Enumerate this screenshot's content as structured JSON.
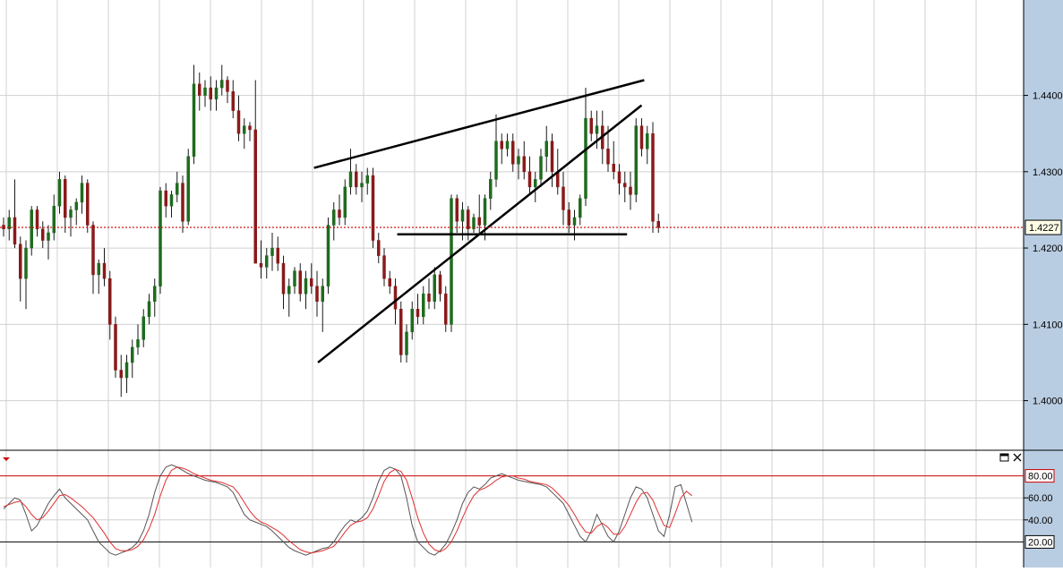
{
  "colors": {
    "background": "#ffffff",
    "grid": "#d0d0d0",
    "axis_panel": "#b9cde2",
    "bull_candle": "#1f6b1f",
    "bear_candle": "#8a1a1a",
    "wick": "#1a1a1a",
    "price_line": "#cc0000",
    "trendline": "#000000",
    "osc_k": "#555555",
    "osc_d": "#e03030",
    "osc_level_upper": "#cc0000",
    "osc_level_lower": "#000000"
  },
  "chart_data": [
    {
      "type": "candlestick",
      "title": "",
      "ylim": [
        1.3935,
        1.4525
      ],
      "y_ticks": [
        "1.4000",
        "1.4100",
        "1.4200",
        "1.4300",
        "1.4400"
      ],
      "current_price_label": "1.4227",
      "current_price": 1.4227,
      "grid": true,
      "bars": [
        [
          1.423,
          1.424,
          1.4215,
          1.4225
        ],
        [
          1.4225,
          1.425,
          1.421,
          1.424
        ],
        [
          1.424,
          1.429,
          1.42,
          1.4205
        ],
        [
          1.4205,
          1.4215,
          1.413,
          1.416
        ],
        [
          1.416,
          1.421,
          1.412,
          1.42
        ],
        [
          1.42,
          1.4255,
          1.419,
          1.425
        ],
        [
          1.425,
          1.4255,
          1.4215,
          1.4225
        ],
        [
          1.4225,
          1.4235,
          1.42,
          1.421
        ],
        [
          1.421,
          1.423,
          1.4185,
          1.422
        ],
        [
          1.422,
          1.427,
          1.421,
          1.4255
        ],
        [
          1.4255,
          1.43,
          1.4245,
          1.429
        ],
        [
          1.429,
          1.4295,
          1.422,
          1.424
        ],
        [
          1.424,
          1.4255,
          1.4215,
          1.425
        ],
        [
          1.425,
          1.4265,
          1.423,
          1.426
        ],
        [
          1.426,
          1.4295,
          1.4245,
          1.4285
        ],
        [
          1.4285,
          1.429,
          1.422,
          1.423
        ],
        [
          1.423,
          1.4235,
          1.414,
          1.4165
        ],
        [
          1.4165,
          1.4185,
          1.414,
          1.418
        ],
        [
          1.418,
          1.42,
          1.415,
          1.416
        ],
        [
          1.416,
          1.417,
          1.408,
          1.41
        ],
        [
          1.41,
          1.411,
          1.403,
          1.404
        ],
        [
          1.404,
          1.406,
          1.4005,
          1.403
        ],
        [
          1.403,
          1.406,
          1.401,
          1.405
        ],
        [
          1.405,
          1.408,
          1.403,
          1.407
        ],
        [
          1.407,
          1.41,
          1.406,
          1.408
        ],
        [
          1.408,
          1.412,
          1.407,
          1.411
        ],
        [
          1.411,
          1.414,
          1.41,
          1.413
        ],
        [
          1.413,
          1.416,
          1.411,
          1.415
        ],
        [
          1.415,
          1.428,
          1.414,
          1.4275
        ],
        [
          1.4275,
          1.4285,
          1.424,
          1.4255
        ],
        [
          1.4255,
          1.4275,
          1.424,
          1.427
        ],
        [
          1.427,
          1.43,
          1.426,
          1.4285
        ],
        [
          1.4285,
          1.4295,
          1.422,
          1.4235
        ],
        [
          1.4235,
          1.433,
          1.423,
          1.432
        ],
        [
          1.432,
          1.444,
          1.431,
          1.4415
        ],
        [
          1.4415,
          1.443,
          1.438,
          1.44
        ],
        [
          1.44,
          1.442,
          1.4385,
          1.441
        ],
        [
          1.441,
          1.4425,
          1.438,
          1.4395
        ],
        [
          1.4395,
          1.442,
          1.438,
          1.441
        ],
        [
          1.441,
          1.444,
          1.44,
          1.442
        ],
        [
          1.442,
          1.4425,
          1.439,
          1.4405
        ],
        [
          1.4405,
          1.442,
          1.437,
          1.438
        ],
        [
          1.438,
          1.44,
          1.434,
          1.435
        ],
        [
          1.435,
          1.437,
          1.433,
          1.436
        ],
        [
          1.436,
          1.4365,
          1.434,
          1.4355
        ],
        [
          1.4355,
          1.442,
          1.418,
          1.418
        ],
        [
          1.418,
          1.421,
          1.416,
          1.4175
        ],
        [
          1.4175,
          1.42,
          1.416,
          1.419
        ],
        [
          1.419,
          1.422,
          1.417,
          1.42
        ],
        [
          1.42,
          1.4215,
          1.417,
          1.418
        ],
        [
          1.418,
          1.419,
          1.412,
          1.414
        ],
        [
          1.414,
          1.416,
          1.411,
          1.415
        ],
        [
          1.415,
          1.4175,
          1.414,
          1.417
        ],
        [
          1.417,
          1.418,
          1.413,
          1.414
        ],
        [
          1.414,
          1.417,
          1.412,
          1.416
        ],
        [
          1.416,
          1.418,
          1.414,
          1.415
        ],
        [
          1.415,
          1.417,
          1.411,
          1.413
        ],
        [
          1.413,
          1.416,
          1.409,
          1.415
        ],
        [
          1.415,
          1.424,
          1.414,
          1.423
        ],
        [
          1.423,
          1.426,
          1.421,
          1.425
        ],
        [
          1.425,
          1.427,
          1.423,
          1.424
        ],
        [
          1.424,
          1.429,
          1.423,
          1.428
        ],
        [
          1.428,
          1.433,
          1.427,
          1.43
        ],
        [
          1.43,
          1.431,
          1.427,
          1.428
        ],
        [
          1.428,
          1.43,
          1.426,
          1.4285
        ],
        [
          1.4285,
          1.4305,
          1.427,
          1.4295
        ],
        [
          1.4295,
          1.4305,
          1.42,
          1.421
        ],
        [
          1.421,
          1.422,
          1.418,
          1.419
        ],
        [
          1.419,
          1.42,
          1.415,
          1.416
        ],
        [
          1.416,
          1.417,
          1.414,
          1.415
        ],
        [
          1.415,
          1.416,
          1.41,
          1.412
        ],
        [
          1.412,
          1.413,
          1.405,
          1.406
        ],
        [
          1.406,
          1.41,
          1.405,
          1.409
        ],
        [
          1.409,
          1.413,
          1.408,
          1.412
        ],
        [
          1.412,
          1.414,
          1.41,
          1.411
        ],
        [
          1.411,
          1.415,
          1.41,
          1.414
        ],
        [
          1.414,
          1.416,
          1.412,
          1.413
        ],
        [
          1.413,
          1.4175,
          1.412,
          1.4165
        ],
        [
          1.4165,
          1.417,
          1.413,
          1.414
        ],
        [
          1.414,
          1.415,
          1.409,
          1.41
        ],
        [
          1.41,
          1.427,
          1.409,
          1.4265
        ],
        [
          1.4265,
          1.427,
          1.422,
          1.4235
        ],
        [
          1.4235,
          1.426,
          1.421,
          1.425
        ],
        [
          1.425,
          1.4255,
          1.421,
          1.4225
        ],
        [
          1.4225,
          1.4245,
          1.422,
          1.424
        ],
        [
          1.424,
          1.427,
          1.422,
          1.423
        ],
        [
          1.423,
          1.427,
          1.421,
          1.4265
        ],
        [
          1.4265,
          1.43,
          1.425,
          1.429
        ],
        [
          1.429,
          1.4375,
          1.428,
          1.434
        ],
        [
          1.434,
          1.435,
          1.431,
          1.433
        ],
        [
          1.433,
          1.435,
          1.432,
          1.434
        ],
        [
          1.434,
          1.435,
          1.43,
          1.431
        ],
        [
          1.431,
          1.433,
          1.429,
          1.432
        ],
        [
          1.432,
          1.434,
          1.429,
          1.43
        ],
        [
          1.43,
          1.432,
          1.427,
          1.428
        ],
        [
          1.428,
          1.43,
          1.426,
          1.429
        ],
        [
          1.429,
          1.433,
          1.428,
          1.432
        ],
        [
          1.432,
          1.436,
          1.43,
          1.434
        ],
        [
          1.434,
          1.435,
          1.428,
          1.43
        ],
        [
          1.43,
          1.433,
          1.427,
          1.428
        ],
        [
          1.428,
          1.43,
          1.423,
          1.425
        ],
        [
          1.425,
          1.426,
          1.422,
          1.423
        ],
        [
          1.423,
          1.425,
          1.421,
          1.424
        ],
        [
          1.424,
          1.427,
          1.423,
          1.4265
        ],
        [
          1.4265,
          1.441,
          1.4255,
          1.437
        ],
        [
          1.437,
          1.438,
          1.434,
          1.435
        ],
        [
          1.435,
          1.438,
          1.433,
          1.436
        ],
        [
          1.436,
          1.438,
          1.431,
          1.433
        ],
        [
          1.433,
          1.436,
          1.43,
          1.431
        ],
        [
          1.431,
          1.434,
          1.429,
          1.43
        ],
        [
          1.43,
          1.431,
          1.427,
          1.4285
        ],
        [
          1.4285,
          1.43,
          1.426,
          1.428
        ],
        [
          1.428,
          1.43,
          1.425,
          1.427
        ],
        [
          1.427,
          1.437,
          1.426,
          1.436
        ],
        [
          1.436,
          1.437,
          1.432,
          1.433
        ],
        [
          1.433,
          1.436,
          1.431,
          1.435
        ],
        [
          1.435,
          1.4365,
          1.422,
          1.4235
        ],
        [
          1.4235,
          1.4245,
          1.422,
          1.4227
        ]
      ],
      "trendlines": [
        {
          "name": "upper-resistance",
          "from": [
            23.5,
            1.4305
          ],
          "to": [
            48.5,
            1.442
          ]
        },
        {
          "name": "rising-support",
          "from": [
            23.8,
            1.405
          ],
          "to": [
            48.3,
            1.4387
          ]
        },
        {
          "name": "horizontal-support",
          "from": [
            29.8,
            1.4218
          ],
          "to": [
            47.2,
            1.4218
          ]
        }
      ]
    },
    {
      "type": "line",
      "title": "",
      "ylim": [
        0,
        100
      ],
      "y_ticks": [
        "80.00",
        "60.00",
        "40.00",
        "20.00"
      ],
      "levels": [
        80,
        20
      ],
      "series": [
        {
          "values": [
            50,
            55,
            60,
            58,
            45,
            30,
            35,
            45,
            55,
            62,
            68,
            60,
            55,
            50,
            45,
            40,
            30,
            20,
            15,
            10,
            8,
            10,
            12,
            15,
            20,
            30,
            45,
            65,
            80,
            88,
            90,
            88,
            85,
            82,
            80,
            78,
            76,
            75,
            74,
            72,
            70,
            65,
            55,
            45,
            40,
            38,
            36,
            34,
            30,
            25,
            20,
            15,
            12,
            10,
            8,
            10,
            12,
            14,
            15,
            20,
            28,
            35,
            40,
            38,
            42,
            48,
            60,
            75,
            85,
            88,
            86,
            80,
            60,
            35,
            20,
            15,
            10,
            8,
            12,
            18,
            28,
            40,
            55,
            65,
            70,
            68,
            72,
            78,
            80,
            82,
            80,
            78,
            76,
            75,
            74,
            73,
            72,
            70,
            65,
            60,
            55,
            45,
            35,
            25,
            20,
            30,
            45,
            35,
            25,
            20,
            30,
            45,
            60,
            70,
            68,
            60,
            45,
            30,
            25,
            45,
            70,
            72,
            55,
            38
          ]
        },
        {
          "values": [
            52,
            54,
            56,
            57,
            52,
            45,
            40,
            42,
            48,
            55,
            62,
            63,
            60,
            56,
            52,
            47,
            42,
            35,
            28,
            20,
            14,
            12,
            12,
            13,
            16,
            22,
            32,
            45,
            62,
            76,
            85,
            88,
            87,
            85,
            82,
            80,
            78,
            76,
            75,
            74,
            72,
            70,
            64,
            56,
            48,
            42,
            38,
            36,
            33,
            30,
            26,
            21,
            17,
            13,
            11,
            10,
            11,
            12,
            14,
            16,
            22,
            29,
            35,
            38,
            39,
            42,
            50,
            62,
            75,
            83,
            86,
            84,
            76,
            60,
            42,
            28,
            18,
            13,
            11,
            14,
            20,
            30,
            42,
            53,
            62,
            67,
            69,
            72,
            76,
            79,
            80,
            80,
            78,
            77,
            75,
            74,
            73,
            72,
            69,
            64,
            59,
            53,
            45,
            36,
            29,
            28,
            34,
            37,
            33,
            27,
            27,
            34,
            45,
            56,
            64,
            65,
            58,
            46,
            35,
            33,
            46,
            60,
            66,
            62
          ]
        }
      ]
    }
  ],
  "toolbar": {
    "indicator_menu_icon": "triangle-down-icon",
    "maximize_icon": "maximize-icon",
    "close_icon": "close-icon"
  }
}
